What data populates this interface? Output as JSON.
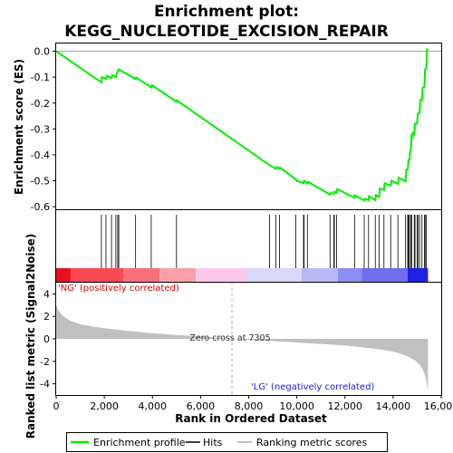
{
  "title_line1": "Enrichment plot:",
  "title_line2": "KEGG_NUCLEOTIDE_EXCISION_REPAIR",
  "chart_data": [
    {
      "type": "line",
      "panel": "enrichment",
      "ylabel": "Enrichment score (ES)",
      "ylim": [
        -0.61,
        0.03
      ],
      "yticks": [
        0.0,
        -0.1,
        -0.2,
        -0.3,
        -0.4,
        -0.5,
        -0.6
      ],
      "ytick_labels": [
        "0.0",
        "-0.1",
        "-0.2",
        "-0.3",
        "-0.4",
        "-0.5",
        "-0.6"
      ],
      "xlim": [
        0,
        16000
      ],
      "grid": false,
      "series": [
        {
          "name": "Enrichment profile",
          "color": "#00ee00",
          "x": [
            0,
            1880,
            1900,
            2070,
            2100,
            2300,
            2330,
            2480,
            2510,
            2560,
            2600,
            3300,
            3320,
            3950,
            3980,
            5000,
            5020,
            8870,
            8900,
            9130,
            9160,
            9280,
            9300,
            9960,
            9990,
            10280,
            10300,
            10440,
            10470,
            11380,
            11400,
            11540,
            11560,
            11650,
            11680,
            12400,
            12420,
            12800,
            12830,
            12980,
            13000,
            13260,
            13290,
            13420,
            13450,
            13620,
            13650,
            13900,
            13930,
            14200,
            14230,
            14520,
            14550,
            14610,
            14640,
            14680,
            14710,
            14740,
            14770,
            14800,
            14830,
            14880,
            14910,
            15000,
            15030,
            15100,
            15130,
            15200,
            15230,
            15300,
            15330,
            15380,
            15410,
            15450
          ],
          "y": [
            0.0,
            -0.12,
            -0.1,
            -0.107,
            -0.095,
            -0.103,
            -0.092,
            -0.1,
            -0.086,
            -0.08,
            -0.07,
            -0.107,
            -0.101,
            -0.14,
            -0.131,
            -0.195,
            -0.19,
            -0.44,
            -0.441,
            -0.454,
            -0.447,
            -0.454,
            -0.449,
            -0.495,
            -0.5,
            -0.509,
            -0.5,
            -0.511,
            -0.504,
            -0.553,
            -0.547,
            -0.55,
            -0.542,
            -0.547,
            -0.532,
            -0.566,
            -0.556,
            -0.576,
            -0.569,
            -0.575,
            -0.56,
            -0.575,
            -0.555,
            -0.563,
            -0.53,
            -0.535,
            -0.51,
            -0.519,
            -0.5,
            -0.512,
            -0.488,
            -0.502,
            -0.457,
            -0.455,
            -0.42,
            -0.418,
            -0.385,
            -0.383,
            -0.325,
            -0.329,
            -0.315,
            -0.32,
            -0.28,
            -0.279,
            -0.24,
            -0.238,
            -0.188,
            -0.189,
            -0.14,
            -0.139,
            -0.07,
            -0.068,
            0.007,
            0.004
          ]
        }
      ]
    },
    {
      "type": "scatter",
      "panel": "hits",
      "series": [
        {
          "name": "Hits",
          "color": "#000000",
          "x": [
            1880,
            2070,
            2300,
            2480,
            2560,
            2600,
            3300,
            3950,
            5000,
            8870,
            9130,
            9280,
            9960,
            10280,
            10300,
            10440,
            11380,
            11540,
            11560,
            11650,
            12400,
            12800,
            12980,
            13260,
            13420,
            13620,
            13900,
            14200,
            14520,
            14610,
            14640,
            14680,
            14740,
            14770,
            14880,
            14910,
            15000,
            15030,
            15100,
            15200,
            15300,
            15330,
            15380
          ]
        }
      ]
    },
    {
      "type": "heatmap",
      "panel": "ranking-colorbar",
      "segments": [
        {
          "x": [
            0,
            600
          ],
          "color": "#e8101a"
        },
        {
          "x": [
            600,
            2800
          ],
          "color": "#f84a55"
        },
        {
          "x": [
            2800,
            4300
          ],
          "color": "#f8707a"
        },
        {
          "x": [
            4300,
            5800
          ],
          "color": "#f9a0a6"
        },
        {
          "x": [
            5800,
            7900
          ],
          "color": "#fbc8eb"
        },
        {
          "x": [
            7900,
            10200
          ],
          "color": "#d8d8f8"
        },
        {
          "x": [
            10200,
            11700
          ],
          "color": "#b6b9f5"
        },
        {
          "x": [
            11700,
            12700
          ],
          "color": "#8c8cf2"
        },
        {
          "x": [
            12700,
            14600
          ],
          "color": "#6e6eef"
        },
        {
          "x": [
            14600,
            15450
          ],
          "color": "#2020e0"
        }
      ]
    },
    {
      "type": "area",
      "panel": "ranked-metric",
      "ylabel": "Ranked list metric (Signal2Noise)",
      "xlabel": "Rank in Ordered Dataset",
      "ylim": [
        -5,
        5
      ],
      "yticks": [
        4,
        2,
        0,
        -2,
        -4
      ],
      "ytick_labels": [
        "4",
        "2",
        "0",
        "-2",
        "-4"
      ],
      "xlim": [
        0,
        16000
      ],
      "xticks": [
        0,
        2000,
        4000,
        6000,
        8000,
        10000,
        12000,
        14000,
        16000
      ],
      "xtick_labels": [
        "0",
        "2,000",
        "4,000",
        "6,000",
        "8,000",
        "10,000",
        "12,000",
        "14,000",
        "16,000"
      ],
      "series": [
        {
          "name": "Ranking metric scores",
          "color": "#c0c0c0",
          "x": [
            0,
            100,
            300,
            600,
            1000,
            1500,
            2000,
            3000,
            4000,
            5000,
            6000,
            7000,
            7305,
            8000,
            9000,
            10000,
            11000,
            12000,
            12500,
            13000,
            13500,
            14000,
            14300,
            14600,
            14900,
            15100,
            15250,
            15350,
            15420,
            15450
          ],
          "y": [
            3.0,
            2.5,
            2.0,
            1.6,
            1.3,
            1.1,
            0.95,
            0.7,
            0.5,
            0.35,
            0.2,
            0.07,
            0.0,
            -0.1,
            -0.2,
            -0.32,
            -0.45,
            -0.6,
            -0.7,
            -0.82,
            -0.95,
            -1.15,
            -1.3,
            -1.55,
            -1.9,
            -2.3,
            -2.8,
            -3.4,
            -4.2,
            -4.7
          ]
        }
      ],
      "annotations": {
        "zero_cross": "Zero cross at 7305",
        "zero_cross_x": 7305,
        "positive_label": "'NG' (positively correlated)",
        "negative_label": "'LG' (negatively correlated)"
      }
    }
  ],
  "legend": {
    "items": [
      {
        "label": "Enrichment profile",
        "color": "#00ee00"
      },
      {
        "label": "Hits",
        "color": "#000000"
      },
      {
        "label": "Ranking metric scores",
        "color": "#c0c0c0"
      }
    ]
  }
}
